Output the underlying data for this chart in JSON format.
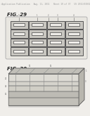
{
  "background_color": "#f0eeea",
  "header_text": "Patent Application Publication   Aug. 11, 2011   Sheet 19 of 37   US 2011/0193141 A1",
  "header_fontsize": 2.2,
  "fig29_label": "FIG. 29",
  "fig30_label": "FIG. 30",
  "label_fontsize": 5.0,
  "grid_rows": 4,
  "grid_cols": 4,
  "fig29_bg_color": "#e8e6e0",
  "fig29_bg_edge": "#aaaaaa",
  "cell_outer_color": "#c8c6c0",
  "cell_inner_color": "#f0eeea",
  "cell_outer_edge": "#555555",
  "cell_inner_edge": "#444444",
  "fig30_front_color": "#dddbd4",
  "fig30_top_color": "#c8c6be",
  "fig30_right_color": "#b8b6ae",
  "fig30_edge_color": "#555555",
  "fig30_layer1_color": "#e8e6e0",
  "fig30_layer2_color": "#d0cec8",
  "fig30_layer3_color": "#bcbab4",
  "annotation_color": "#555555"
}
